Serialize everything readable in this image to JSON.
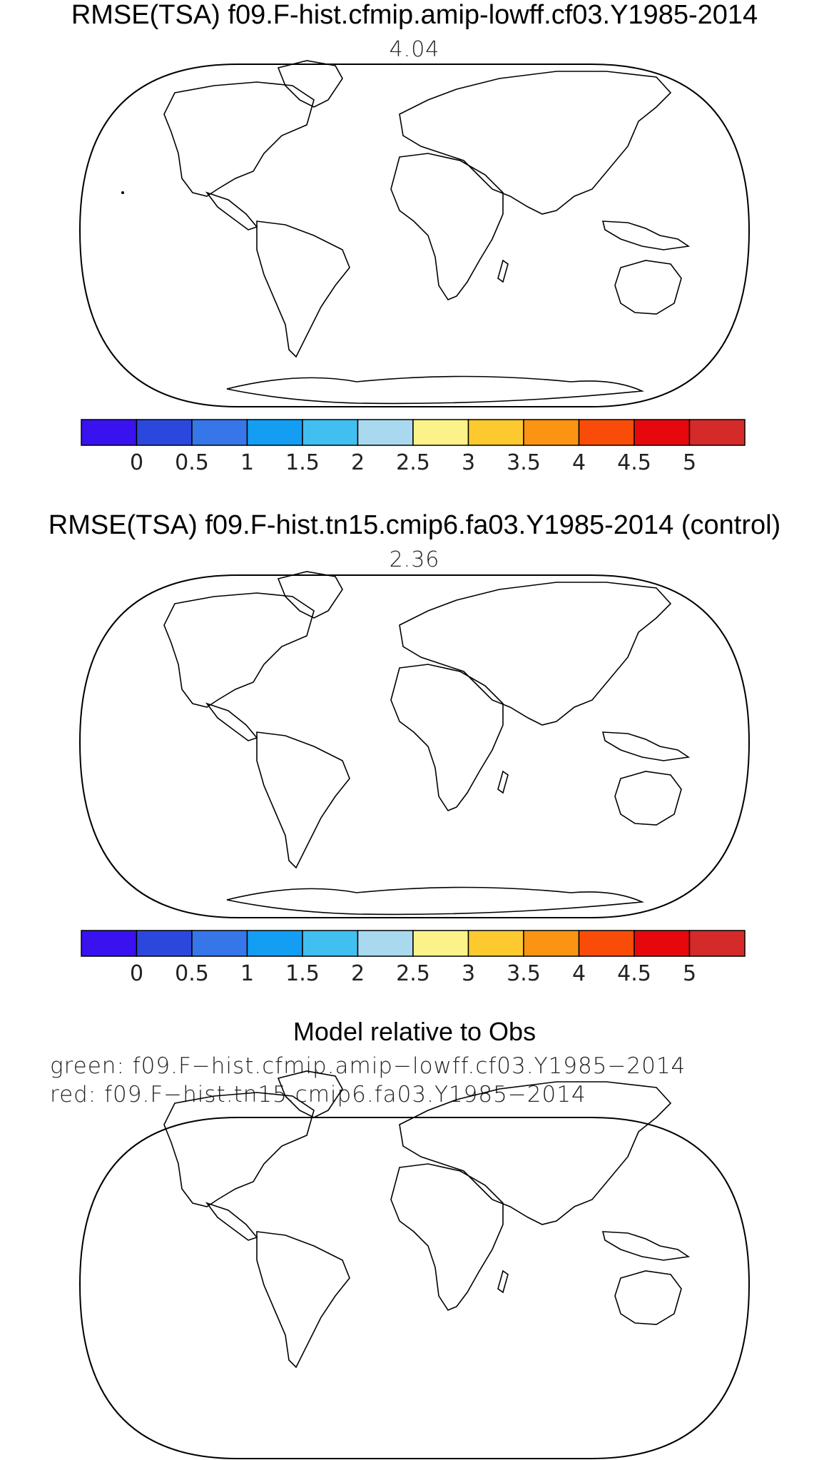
{
  "panels": [
    {
      "title": "RMSE(TSA) f09.F-hist.cfmip.amip-lowff.cf03.Y1985-2014",
      "value": "4.04"
    },
    {
      "title": "RMSE(TSA) f09.F-hist.tn15.cmip6.fa03.Y1985-2014 (control)",
      "value": "2.36"
    },
    {
      "title": "Model relative to Obs",
      "legend_green": "green: f09.F−hist.cfmip.amip−lowff.cf03.Y1985−2014",
      "legend_red": "red: f09.F−hist.tn15.cmip6.fa03.Y1985−2014"
    }
  ],
  "colorbar": {
    "labels": [
      "0",
      "0.5",
      "1",
      "1.5",
      "2",
      "2.5",
      "3",
      "3.5",
      "4",
      "4.5",
      "5"
    ],
    "colors": [
      "#3a12ef",
      "#2b48dc",
      "#3676e8",
      "#139df3",
      "#40bff0",
      "#a9d9ef",
      "#fbf38a",
      "#fcc92e",
      "#fb9413",
      "#fa4c09",
      "#e6080c",
      "#d42a2a"
    ]
  },
  "palette": {
    "green": "#22ee22",
    "red": "#ee0000"
  }
}
